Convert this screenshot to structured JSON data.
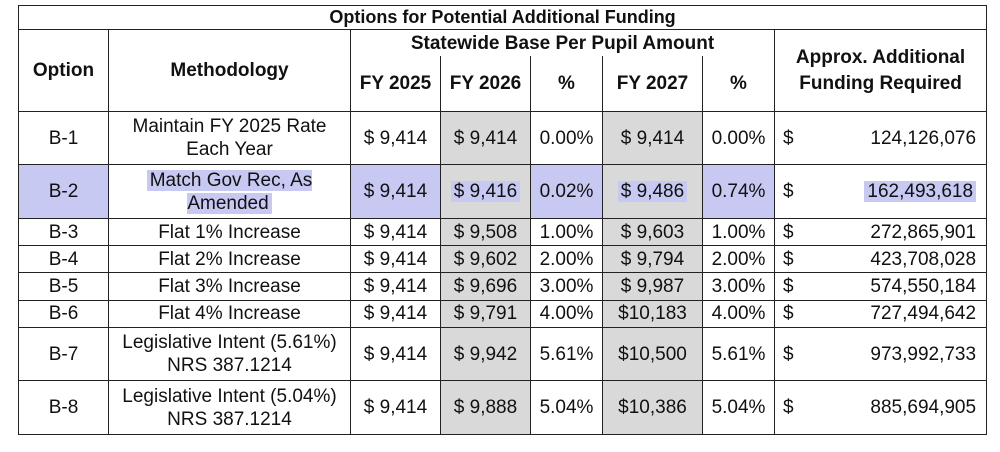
{
  "table": {
    "title": "Options for Potential Additional Funding",
    "group_header": "Statewide Base Per Pupil Amount",
    "headers": {
      "option": "Option",
      "methodology": "Methodology",
      "fy2025": "FY 2025",
      "fy2026": "FY 2026",
      "pct1": "%",
      "fy2027": "FY 2027",
      "pct2": "%",
      "additional": "Approx. Additional Funding Required"
    },
    "rows": [
      {
        "option": "B-1",
        "methodology": "Maintain FY 2025 Rate Each Year",
        "fy2025": "$ 9,414",
        "fy2026": "$ 9,414",
        "pct1": "0.00%",
        "fy2027": "$  9,414",
        "pct2": "0.00%",
        "dollar": "$",
        "amount": "124,126,076"
      },
      {
        "option": "B-2",
        "methodology": "Match Gov Rec, As Amended",
        "fy2025": "$ 9,414",
        "fy2026": "$ 9,416",
        "pct1": "0.02%",
        "fy2027": "$  9,486",
        "pct2": "0.74%",
        "dollar": "$",
        "amount": "162,493,618",
        "highlighted": true
      },
      {
        "option": "B-3",
        "methodology": "Flat 1% Increase",
        "fy2025": "$ 9,414",
        "fy2026": "$ 9,508",
        "pct1": "1.00%",
        "fy2027": "$  9,603",
        "pct2": "1.00%",
        "dollar": "$",
        "amount": "272,865,901"
      },
      {
        "option": "B-4",
        "methodology": "Flat 2% Increase",
        "fy2025": "$ 9,414",
        "fy2026": "$ 9,602",
        "pct1": "2.00%",
        "fy2027": "$  9,794",
        "pct2": "2.00%",
        "dollar": "$",
        "amount": "423,708,028"
      },
      {
        "option": "B-5",
        "methodology": "Flat 3% Increase",
        "fy2025": "$ 9,414",
        "fy2026": "$ 9,696",
        "pct1": "3.00%",
        "fy2027": "$  9,987",
        "pct2": "3.00%",
        "dollar": "$",
        "amount": "574,550,184"
      },
      {
        "option": "B-6",
        "methodology": "Flat 4% Increase",
        "fy2025": "$ 9,414",
        "fy2026": "$ 9,791",
        "pct1": "4.00%",
        "fy2027": "$10,183",
        "pct2": "4.00%",
        "dollar": "$",
        "amount": "727,494,642"
      },
      {
        "option": "B-7",
        "methodology": "Legislative Intent (5.61%) NRS 387.1214",
        "fy2025": "$ 9,414",
        "fy2026": "$ 9,942",
        "pct1": "5.61%",
        "fy2027": "$10,500",
        "pct2": "5.61%",
        "dollar": "$",
        "amount": "973,992,733"
      },
      {
        "option": "B-8",
        "methodology": "Legislative Intent (5.04%) NRS 387.1214",
        "fy2025": "$ 9,414",
        "fy2026": "$ 9,888",
        "pct1": "5.04%",
        "fy2027": "$10,386",
        "pct2": "5.04%",
        "dollar": "$",
        "amount": "885,694,905"
      }
    ]
  },
  "colors": {
    "shade": "#d9d9d9",
    "highlight": "#c7c9f2"
  }
}
